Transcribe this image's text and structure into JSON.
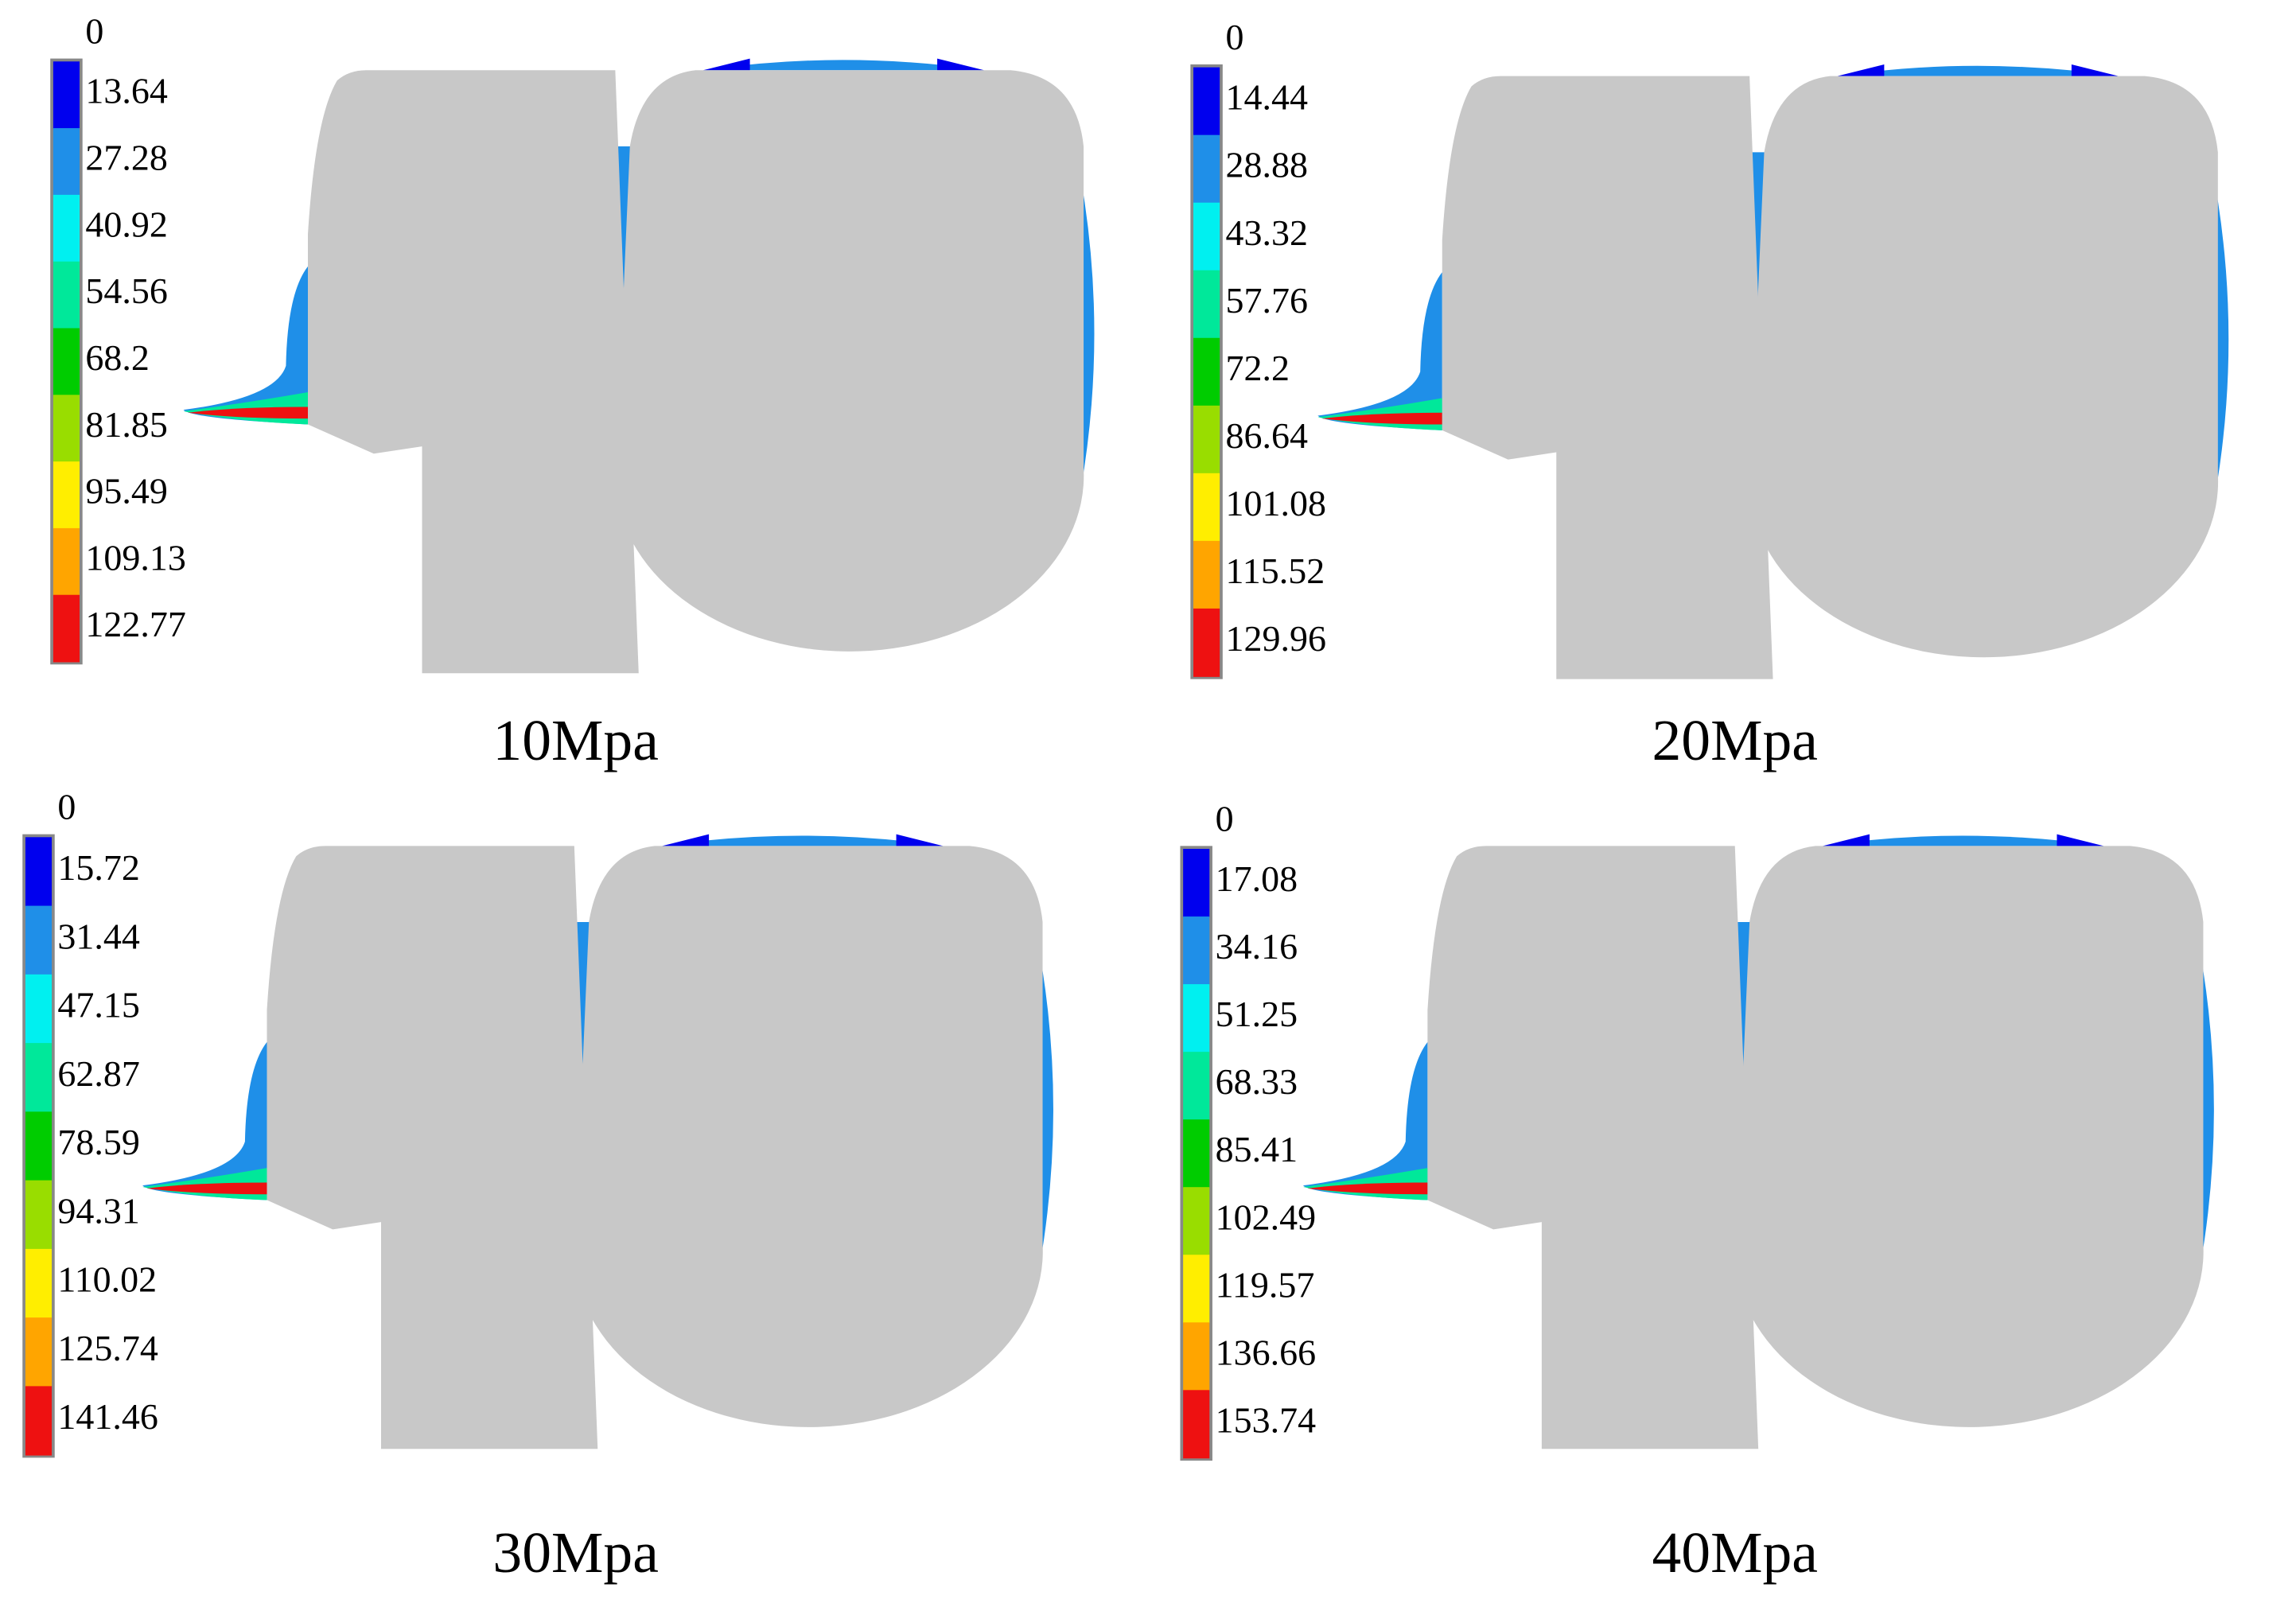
{
  "panels": [
    {
      "title": "10Mpa",
      "legend": [
        0,
        13.64,
        27.28,
        40.92,
        54.56,
        68.2,
        81.85,
        95.49,
        109.13,
        122.77
      ]
    },
    {
      "title": "20Mpa",
      "legend": [
        0,
        14.44,
        28.88,
        43.32,
        57.76,
        72.2,
        86.64,
        101.08,
        115.52,
        129.96
      ]
    },
    {
      "title": "30Mpa",
      "legend": [
        0,
        15.72,
        31.44,
        47.15,
        62.87,
        78.59,
        94.31,
        110.02,
        125.74,
        141.46
      ]
    },
    {
      "title": "40Mpa",
      "legend": [
        0,
        17.08,
        34.16,
        51.25,
        68.33,
        85.41,
        102.49,
        119.57,
        136.66,
        153.74
      ]
    }
  ]
}
